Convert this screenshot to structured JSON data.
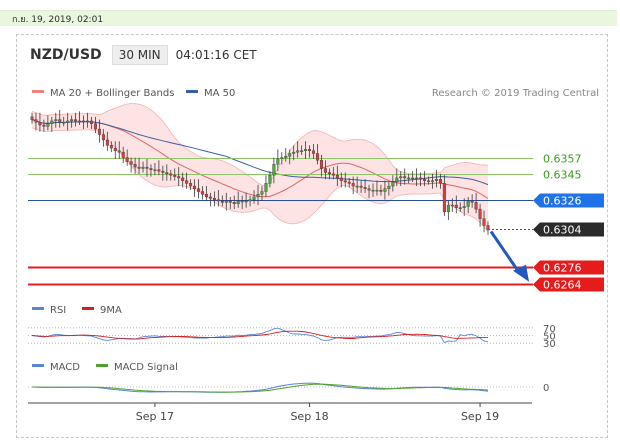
{
  "header": {
    "date": "ก.ย. 19, 2019, 02:01",
    "symbol": "NZD/USD",
    "timeframe": "30 MIN",
    "time": "04:01:16 CET"
  },
  "chart_data": [
    {
      "type": "candlestick",
      "title": "NZD/USD",
      "legend": [
        {
          "name": "MA 20 + Bollinger Bands",
          "color": "#f08080"
        },
        {
          "name": "MA 50",
          "color": "#3a5fa0"
        }
      ],
      "credit": "Research © 2019 Trading Central",
      "ylim": [
        0.6255,
        0.6395
      ],
      "x_ticks": [
        "Sep 17",
        "Sep 18",
        "Sep 19"
      ],
      "x_tick_index": [
        31,
        70,
        113
      ],
      "close": [
        0.6385,
        0.6383,
        0.6381,
        0.638,
        0.6382,
        0.6384,
        0.6385,
        0.6383,
        0.6383,
        0.6384,
        0.6385,
        0.6384,
        0.6384,
        0.6384,
        0.6384,
        0.6382,
        0.6378,
        0.6374,
        0.637,
        0.6366,
        0.6364,
        0.6362,
        0.6361,
        0.6357,
        0.6354,
        0.6352,
        0.635,
        0.6349,
        0.635,
        0.6349,
        0.6348,
        0.6348,
        0.6347,
        0.6346,
        0.6345,
        0.6344,
        0.6343,
        0.6342,
        0.634,
        0.6338,
        0.6336,
        0.6334,
        0.6332,
        0.633,
        0.6328,
        0.6327,
        0.6326,
        0.6325,
        0.6324,
        0.6325,
        0.6324,
        0.6323,
        0.6325,
        0.6325,
        0.6325,
        0.6326,
        0.6328,
        0.633,
        0.6332,
        0.6338,
        0.6344,
        0.6352,
        0.6356,
        0.6357,
        0.6358,
        0.636,
        0.6361,
        0.6362,
        0.6362,
        0.6363,
        0.6362,
        0.636,
        0.6355,
        0.6349,
        0.6346,
        0.6345,
        0.6344,
        0.6342,
        0.634,
        0.6339,
        0.6338,
        0.6336,
        0.6336,
        0.6335,
        0.6334,
        0.6333,
        0.6333,
        0.6333,
        0.6332,
        0.6334,
        0.6336,
        0.6339,
        0.6342,
        0.6343,
        0.6342,
        0.6342,
        0.6342,
        0.6342,
        0.6341,
        0.634,
        0.634,
        0.634,
        0.6341,
        0.6338,
        0.6317,
        0.6322,
        0.6322,
        0.632,
        0.632,
        0.6321,
        0.6325,
        0.6324,
        0.6319,
        0.6312,
        0.6307,
        0.6304
      ],
      "levels": [
        {
          "value": 0.6357,
          "label": "0.6357",
          "style": "green"
        },
        {
          "value": 0.6345,
          "label": "0.6345",
          "style": "green"
        },
        {
          "value": 0.6326,
          "label": "0.6326",
          "style": "blue"
        },
        {
          "value": 0.6304,
          "label": "0.6304",
          "style": "dark"
        },
        {
          "value": 0.6276,
          "label": "0.6276",
          "style": "red"
        },
        {
          "value": 0.6264,
          "label": "0.6264",
          "style": "red"
        }
      ],
      "arrow": {
        "from": 0.6304,
        "to": 0.6264,
        "direction": "down"
      }
    },
    {
      "type": "line",
      "series": [
        {
          "name": "RSI",
          "color": "#5b86d6"
        },
        {
          "name": "9MA",
          "color": "#d02020"
        }
      ],
      "ylim": [
        20,
        80
      ],
      "levels": [
        70,
        50,
        30
      ],
      "tick_labels": [
        "70",
        "50",
        "30"
      ]
    },
    {
      "type": "line",
      "series": [
        {
          "name": "MACD",
          "color": "#5b86d6"
        },
        {
          "name": "MACD Signal",
          "color": "#50a030"
        }
      ],
      "levels": [
        0
      ],
      "tick_labels": [
        "0"
      ]
    }
  ]
}
